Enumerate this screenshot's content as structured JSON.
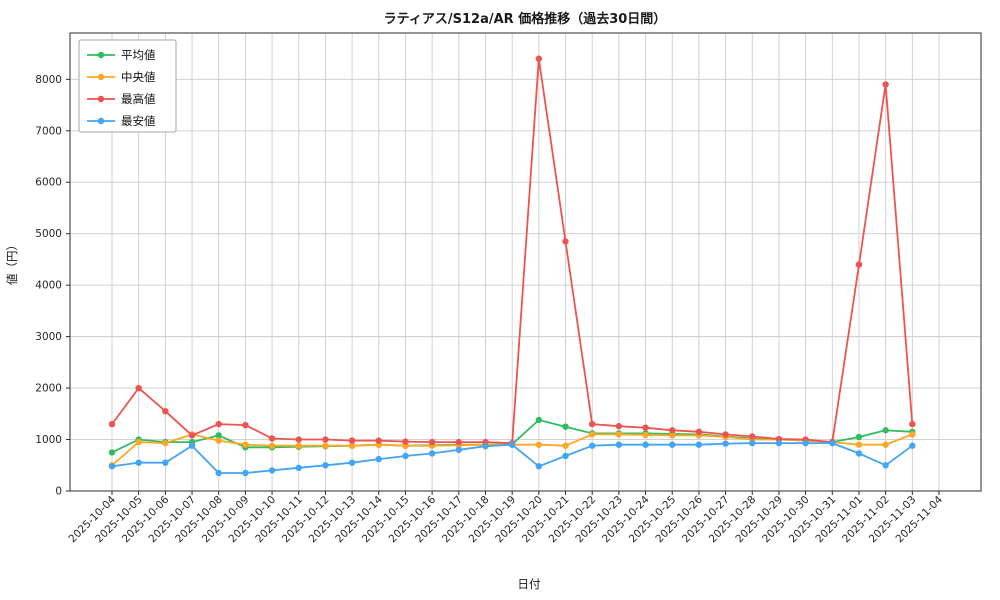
{
  "chart_data": {
    "type": "line",
    "title": "ラティアス/S12a/AR 価格推移（過去30日間）",
    "xlabel": "日付",
    "ylabel": "値（円）",
    "ylim": [
      0,
      8900
    ],
    "yticks": [
      0,
      1000,
      2000,
      3000,
      4000,
      5000,
      6000,
      7000,
      8000
    ],
    "grid": true,
    "grid_color": "#cccccc",
    "legend_position": "upper left",
    "categories": [
      "2025-10-04",
      "2025-10-05",
      "2025-10-06",
      "2025-10-07",
      "2025-10-08",
      "2025-10-09",
      "2025-10-10",
      "2025-10-11",
      "2025-10-12",
      "2025-10-13",
      "2025-10-14",
      "2025-10-15",
      "2025-10-16",
      "2025-10-17",
      "2025-10-18",
      "2025-10-19",
      "2025-10-20",
      "2025-10-21",
      "2025-10-22",
      "2025-10-23",
      "2025-10-24",
      "2025-10-25",
      "2025-10-26",
      "2025-10-27",
      "2025-10-28",
      "2025-10-29",
      "2025-10-30",
      "2025-10-31",
      "2025-11-01",
      "2025-11-02",
      "2025-11-03",
      "2025-11-04"
    ],
    "series": [
      {
        "key": "average",
        "name": "平均値",
        "color": "#2fbe5f",
        "values": [
          750,
          1000,
          950,
          950,
          1080,
          850,
          850,
          860,
          870,
          880,
          900,
          880,
          890,
          900,
          900,
          910,
          1380,
          1250,
          1120,
          1120,
          1120,
          1110,
          1100,
          1060,
          1020,
          1000,
          980,
          950,
          1050,
          1180,
          1150,
          null
        ]
      },
      {
        "key": "median",
        "name": "中央値",
        "color": "#ffa726",
        "values": [
          500,
          950,
          930,
          1100,
          980,
          900,
          880,
          880,
          880,
          880,
          900,
          880,
          880,
          890,
          900,
          900,
          900,
          880,
          1100,
          1100,
          1090,
          1080,
          1080,
          1050,
          1000,
          1000,
          980,
          950,
          900,
          900,
          1100,
          null
        ]
      },
      {
        "key": "max",
        "name": "最高値",
        "color": "#ef5350",
        "values": [
          1300,
          2000,
          1550,
          1080,
          1300,
          1280,
          1020,
          1000,
          1000,
          980,
          980,
          960,
          950,
          950,
          950,
          930,
          8400,
          4850,
          1300,
          1260,
          1230,
          1180,
          1150,
          1100,
          1060,
          1010,
          1000,
          950,
          4400,
          7900,
          1300,
          null
        ]
      },
      {
        "key": "min",
        "name": "最安値",
        "color": "#42a5f5",
        "values": [
          480,
          550,
          550,
          880,
          350,
          350,
          400,
          450,
          500,
          550,
          620,
          680,
          730,
          800,
          870,
          900,
          480,
          680,
          880,
          900,
          900,
          900,
          900,
          920,
          930,
          930,
          930,
          930,
          730,
          500,
          880,
          null
        ]
      }
    ]
  }
}
